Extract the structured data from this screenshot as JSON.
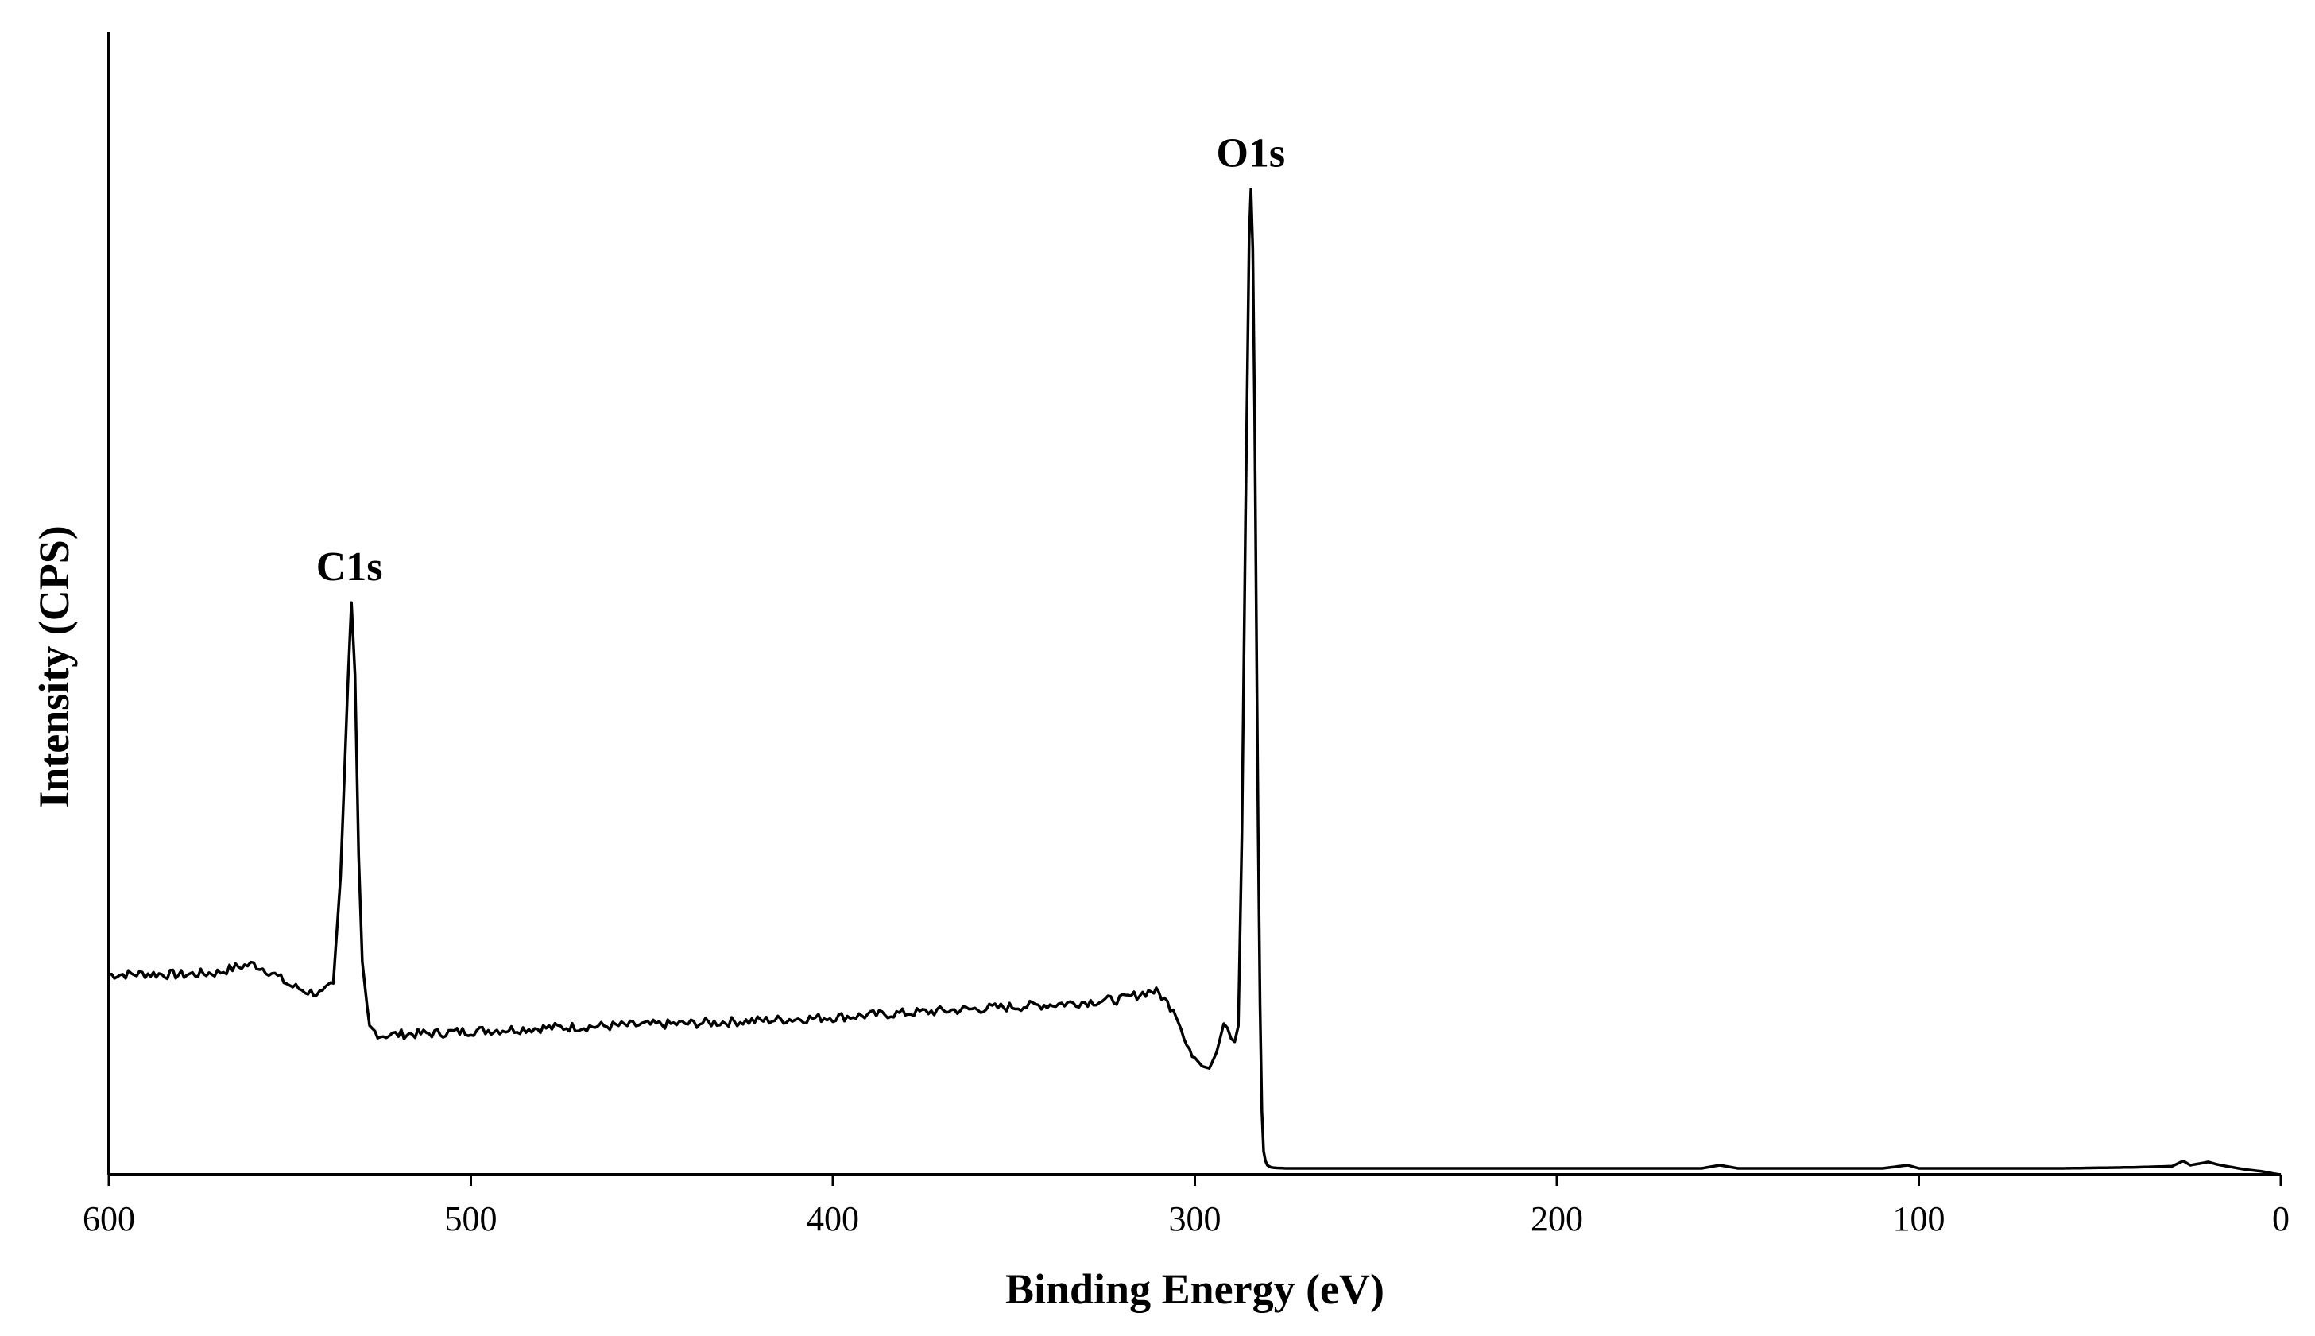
{
  "chart_data": {
    "type": "line",
    "title": "",
    "xlabel": "Binding Energy (eV)",
    "ylabel": "Intensity (CPS)",
    "xlim": [
      600,
      0
    ],
    "x_reversed": true,
    "ylim": [
      0,
      100
    ],
    "y_tick_labels_shown": false,
    "grid": false,
    "legend": "none",
    "x_ticks": [
      600,
      500,
      400,
      300,
      200,
      100,
      0
    ],
    "x_tick_labels": [
      "600",
      "500",
      "400",
      "300",
      "200",
      "100",
      "0"
    ],
    "series": [
      {
        "color": "#000000",
        "x": [
          600,
          590,
          580,
          570,
          565,
          560,
          555,
          550,
          545,
          541,
          538,
          536,
          534,
          533,
          532,
          531,
          530,
          528,
          525,
          520,
          510,
          500,
          480,
          460,
          440,
          420,
          400,
          380,
          360,
          340,
          320,
          312,
          310,
          306,
          303,
          300,
          298,
          296,
          294,
          292,
          291,
          290,
          289,
          288,
          287,
          286,
          285,
          284.5,
          284,
          283.5,
          283,
          282.5,
          282,
          281.5,
          281,
          280.5,
          280,
          279,
          278,
          275,
          260,
          240,
          220,
          200,
          180,
          160,
          155,
          150,
          130,
          110,
          103,
          100,
          80,
          60,
          40,
          30,
          27,
          25,
          20,
          18,
          15,
          10,
          5,
          2,
          0
        ],
        "values": [
          18.8,
          18.9,
          18.8,
          19.0,
          19.5,
          19.8,
          19.0,
          17.8,
          17.2,
          17.0,
          18.0,
          28.0,
          46.0,
          53.8,
          47.0,
          30.0,
          20.0,
          13.8,
          13.1,
          13.2,
          13.3,
          13.5,
          13.8,
          14.0,
          14.2,
          14.5,
          14.8,
          15.2,
          15.6,
          16.0,
          16.5,
          17.3,
          17.1,
          15.5,
          13.0,
          11.0,
          10.2,
          10.0,
          11.5,
          14.2,
          13.8,
          12.8,
          12.5,
          14.0,
          32.0,
          62.0,
          88.0,
          92.7,
          87.0,
          72.0,
          52.0,
          32.0,
          16.0,
          6.0,
          2.2,
          1.3,
          0.9,
          0.7,
          0.65,
          0.6,
          0.6,
          0.6,
          0.6,
          0.6,
          0.6,
          0.6,
          0.9,
          0.6,
          0.6,
          0.6,
          0.9,
          0.6,
          0.6,
          0.6,
          0.7,
          0.8,
          1.3,
          0.9,
          1.2,
          1.0,
          0.8,
          0.5,
          0.3,
          0.1,
          0.0
        ]
      }
    ],
    "annotations": [
      {
        "text": "C1s",
        "x": 534,
        "y": 53.8
      },
      {
        "text": "O1s",
        "x": 285,
        "y": 92.7
      }
    ]
  }
}
